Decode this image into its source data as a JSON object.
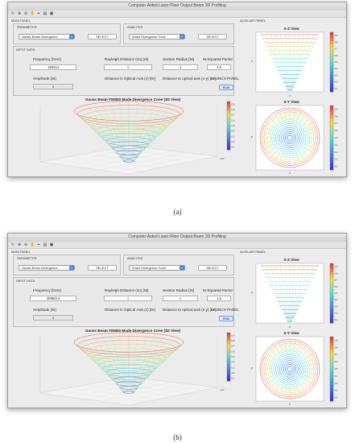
{
  "window_title": "Computer-Aided Laser-Fiber Output Beam 3D Profiling",
  "panels": {
    "main": "MAIN PANEL",
    "parameter": "PARAMETER",
    "analysis": "ANALYSIS",
    "input_data": "INPUT DATA",
    "auxiliar": "AUXILIAR PANEL",
    "launch": "LAUNCH PANEL"
  },
  "controls": {
    "parameter_select": "Gauss Beam Divergence",
    "analysis_select": "Exact Divergence Cone",
    "select_button": "SELECT",
    "run_button": "RUN"
  },
  "inputs": {
    "frequency_label": "Frequency [GHz]",
    "rayleigh_label": "Rayleigh Distance (zo) [SI]",
    "section_label": "Section Radius [SI]",
    "msquared_label": "M-Squared Factor",
    "amplitude_label": "Amplitude [SI]",
    "distance_z_label": "Distance in Optical Axis (z) [SI]",
    "distance_xy_label": "Distance to optical axis (x-y) [SI]",
    "rayleigh_value": "1",
    "section_value": "1",
    "msquared_value": "1.5",
    "amplitude_value": "1"
  },
  "plots": {
    "main_title": "Gauss Beam-TEM00 Mode Divergence Cone (3D View)",
    "xz_title": "X-Z View",
    "xy_title": "X-Y View",
    "xz_xlabel": "x",
    "xz_ylabel": "z",
    "xy_xlabel": "x",
    "xy_ylabel": "y",
    "sci_exp": "×10⁻⁷"
  },
  "screens": [
    {
      "frequency_value": "193414",
      "caption": "(a)"
    },
    {
      "frequency_value": "4098414",
      "caption": "(b)"
    }
  ],
  "colorbar_ticks": [
    "0.9",
    "0.8",
    "0.7",
    "0.6",
    "0.5",
    "0.4",
    "0.3",
    "0.2",
    "0.1"
  ],
  "chart_colors": {
    "cone_top": "#e8413a",
    "cone_mid": "#f0e04a",
    "cone_bottom": "#3a36d6"
  }
}
